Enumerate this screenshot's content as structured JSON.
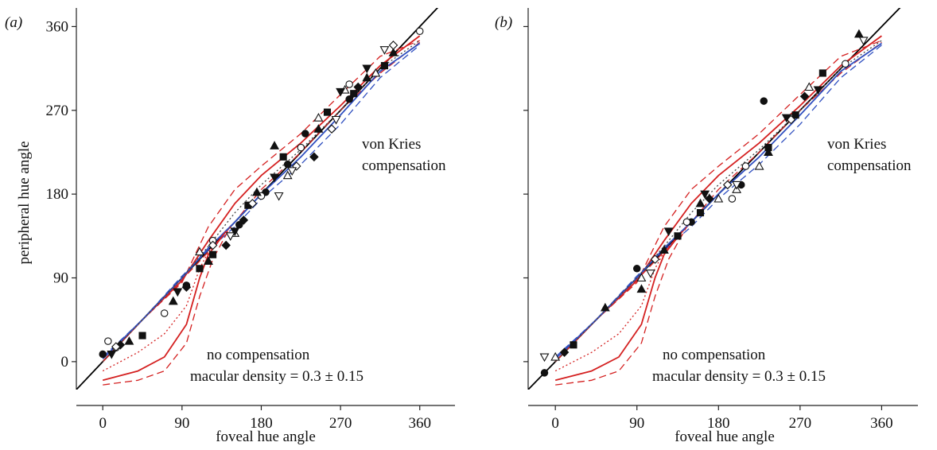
{
  "chart_data": [
    {
      "type": "scatter",
      "panel_label": "(a)",
      "xlabel": "foveal hue angle",
      "ylabel": "peripheral hue angle",
      "xlim": [
        -30,
        400
      ],
      "ylim": [
        -30,
        380
      ],
      "xticks": [
        0,
        90,
        180,
        270,
        360
      ],
      "yticks": [
        0,
        90,
        180,
        270,
        360
      ],
      "annotations": {
        "upper_1": "von Kries",
        "upper_2": "compensation",
        "lower_1": "no compensation",
        "lower_2": "macular density = 0.3 ± 0.15"
      },
      "lines": [
        {
          "name": "identity",
          "color": "#000000",
          "style": "solid",
          "x": [
            -30,
            400
          ],
          "y": [
            -30,
            400
          ]
        },
        {
          "name": "von Kries compensation",
          "color": "#d42020",
          "style": "solid",
          "x": [
            0,
            45,
            90,
            120,
            150,
            180,
            225,
            270,
            315,
            360
          ],
          "y": [
            0,
            45,
            87,
            130,
            170,
            200,
            235,
            275,
            318,
            350
          ]
        },
        {
          "name": "von Kries upper",
          "color": "#d42020",
          "style": "dashed",
          "x": [
            0,
            45,
            90,
            120,
            150,
            180,
            225,
            270,
            315,
            360
          ],
          "y": [
            0,
            45,
            85,
            145,
            185,
            210,
            245,
            287,
            328,
            345
          ]
        },
        {
          "name": "von Kries lower",
          "color": "#d42020",
          "style": "dashed",
          "x": [
            0,
            45,
            90,
            120,
            150,
            180,
            225,
            270,
            315,
            360
          ],
          "y": [
            0,
            45,
            88,
            118,
            150,
            185,
            225,
            270,
            310,
            343
          ]
        },
        {
          "name": "von Kries blue",
          "color": "#3050c0",
          "style": "solid",
          "x": [
            0,
            45,
            90,
            120,
            150,
            180,
            225,
            270,
            315,
            360
          ],
          "y": [
            3,
            45,
            90,
            122,
            150,
            180,
            220,
            265,
            312,
            342
          ]
        },
        {
          "name": "von Kries blue dashed",
          "color": "#3050c0",
          "style": "dashed",
          "x": [
            0,
            45,
            90,
            120,
            150,
            180,
            225,
            270,
            315,
            360
          ],
          "y": [
            5,
            45,
            92,
            120,
            145,
            175,
            212,
            255,
            305,
            340
          ]
        },
        {
          "name": "von Kries dotted",
          "color": "#444444",
          "style": "dotted",
          "x": [
            0,
            45,
            90,
            120,
            150,
            180,
            225,
            270,
            315,
            360
          ],
          "y": [
            0,
            45,
            90,
            124,
            160,
            190,
            228,
            270,
            315,
            345
          ]
        },
        {
          "name": "no compensation",
          "color": "#d42020",
          "style": "solid",
          "x": [
            0,
            40,
            70,
            95,
            110,
            120,
            140
          ],
          "y": [
            -20,
            -10,
            5,
            40,
            90,
            115,
            140
          ]
        },
        {
          "name": "no compensation upper",
          "color": "#d42020",
          "style": "dashed",
          "x": [
            0,
            40,
            70,
            95,
            110,
            125,
            145
          ],
          "y": [
            -25,
            -20,
            -10,
            20,
            70,
            110,
            145
          ]
        },
        {
          "name": "no compensation dotted",
          "color": "#d42020",
          "style": "dotted",
          "x": [
            0,
            40,
            70,
            95,
            110,
            120,
            140
          ],
          "y": [
            -10,
            10,
            30,
            60,
            100,
            118,
            140
          ]
        }
      ],
      "points": [
        {
          "marker": "filled-circle",
          "x": [
            0,
            95,
            155,
            185,
            210,
            230,
            280
          ],
          "y": [
            8,
            82,
            147,
            182,
            212,
            245,
            282
          ]
        },
        {
          "marker": "open-circle",
          "x": [
            6,
            15,
            70,
            125,
            180,
            225,
            280,
            360
          ],
          "y": [
            22,
            15,
            52,
            130,
            178,
            230,
            298,
            355
          ]
        },
        {
          "marker": "filled-square",
          "x": [
            45,
            110,
            125,
            165,
            205,
            255,
            285,
            320
          ],
          "y": [
            28,
            100,
            115,
            168,
            220,
            268,
            288,
            318
          ]
        },
        {
          "marker": "filled-triangle",
          "x": [
            30,
            80,
            120,
            175,
            195,
            245,
            300,
            330
          ],
          "y": [
            22,
            65,
            108,
            182,
            232,
            250,
            305,
            332
          ]
        },
        {
          "marker": "open-triangle",
          "x": [
            110,
            150,
            210,
            245,
            275,
            310
          ],
          "y": [
            118,
            138,
            200,
            262,
            292,
            310
          ]
        },
        {
          "marker": "filled-diamond",
          "x": [
            20,
            95,
            140,
            160,
            240,
            290
          ],
          "y": [
            18,
            80,
            125,
            152,
            220,
            295
          ]
        },
        {
          "marker": "open-diamond",
          "x": [
            15,
            125,
            170,
            220,
            260,
            330
          ],
          "y": [
            16,
            125,
            170,
            210,
            250,
            340
          ]
        },
        {
          "marker": "filled-down-triangle",
          "x": [
            10,
            85,
            150,
            195,
            270,
            300
          ],
          "y": [
            8,
            75,
            140,
            198,
            290,
            315
          ]
        },
        {
          "marker": "open-down-triangle",
          "x": [
            145,
            200,
            215,
            265,
            320
          ],
          "y": [
            135,
            178,
            205,
            260,
            335
          ]
        }
      ]
    },
    {
      "type": "scatter",
      "panel_label": "(b)",
      "xlabel": "foveal hue angle",
      "ylabel": "",
      "xlim": [
        -30,
        400
      ],
      "ylim": [
        -30,
        380
      ],
      "xticks": [
        0,
        90,
        180,
        270,
        360
      ],
      "yticks": [
        0,
        90,
        180,
        270,
        360
      ],
      "annotations": {
        "upper_1": "von Kries",
        "upper_2": "compensation",
        "lower_1": "no compensation",
        "lower_2": "macular density = 0.3 ± 0.15"
      },
      "lines": [
        {
          "name": "identity",
          "color": "#000000",
          "style": "solid",
          "x": [
            -30,
            400
          ],
          "y": [
            -30,
            400
          ]
        },
        {
          "name": "von Kries compensation",
          "color": "#d42020",
          "style": "solid",
          "x": [
            0,
            45,
            90,
            120,
            150,
            180,
            225,
            270,
            315,
            360
          ],
          "y": [
            0,
            45,
            87,
            130,
            170,
            200,
            235,
            275,
            318,
            350
          ]
        },
        {
          "name": "von Kries upper",
          "color": "#d42020",
          "style": "dashed",
          "x": [
            0,
            45,
            90,
            120,
            150,
            180,
            225,
            270,
            315,
            360
          ],
          "y": [
            0,
            45,
            85,
            145,
            185,
            210,
            245,
            287,
            328,
            345
          ]
        },
        {
          "name": "von Kries lower",
          "color": "#d42020",
          "style": "dashed",
          "x": [
            0,
            45,
            90,
            120,
            150,
            180,
            225,
            270,
            315,
            360
          ],
          "y": [
            0,
            45,
            88,
            118,
            150,
            185,
            225,
            270,
            310,
            343
          ]
        },
        {
          "name": "von Kries blue",
          "color": "#3050c0",
          "style": "solid",
          "x": [
            0,
            45,
            90,
            120,
            150,
            180,
            225,
            270,
            315,
            360
          ],
          "y": [
            3,
            45,
            90,
            122,
            150,
            180,
            220,
            265,
            312,
            342
          ]
        },
        {
          "name": "von Kries blue dashed",
          "color": "#3050c0",
          "style": "dashed",
          "x": [
            0,
            45,
            90,
            120,
            150,
            180,
            225,
            270,
            315,
            360
          ],
          "y": [
            5,
            45,
            92,
            120,
            145,
            175,
            212,
            255,
            305,
            340
          ]
        },
        {
          "name": "von Kries dotted",
          "color": "#444444",
          "style": "dotted",
          "x": [
            0,
            45,
            90,
            120,
            150,
            180,
            225,
            270,
            315,
            360
          ],
          "y": [
            0,
            45,
            90,
            124,
            160,
            190,
            228,
            270,
            315,
            345
          ]
        },
        {
          "name": "no compensation",
          "color": "#d42020",
          "style": "solid",
          "x": [
            0,
            40,
            70,
            95,
            110,
            120,
            140
          ],
          "y": [
            -20,
            -10,
            5,
            40,
            90,
            115,
            140
          ]
        },
        {
          "name": "no compensation upper",
          "color": "#d42020",
          "style": "dashed",
          "x": [
            0,
            40,
            70,
            95,
            110,
            125,
            145
          ],
          "y": [
            -25,
            -20,
            -10,
            20,
            70,
            110,
            145
          ]
        },
        {
          "name": "no compensation dotted",
          "color": "#d42020",
          "style": "dotted",
          "x": [
            0,
            40,
            70,
            95,
            110,
            120,
            140
          ],
          "y": [
            -10,
            10,
            30,
            60,
            100,
            118,
            140
          ]
        }
      ],
      "points": [
        {
          "marker": "filled-circle",
          "x": [
            -12,
            90,
            150,
            205,
            230
          ],
          "y": [
            -12,
            100,
            150,
            190,
            280
          ]
        },
        {
          "marker": "open-circle",
          "x": [
            145,
            195,
            210,
            260,
            320
          ],
          "y": [
            150,
            175,
            210,
            262,
            320
          ]
        },
        {
          "marker": "filled-square",
          "x": [
            20,
            135,
            160,
            235,
            265,
            295
          ],
          "y": [
            18,
            135,
            160,
            230,
            265,
            310
          ]
        },
        {
          "marker": "filled-triangle",
          "x": [
            55,
            95,
            120,
            160,
            235,
            335
          ],
          "y": [
            58,
            78,
            120,
            170,
            225,
            352
          ]
        },
        {
          "marker": "open-triangle",
          "x": [
            0,
            95,
            180,
            200,
            225,
            280
          ],
          "y": [
            5,
            90,
            175,
            185,
            210,
            295
          ]
        },
        {
          "marker": "filled-diamond",
          "x": [
            10,
            170,
            275
          ],
          "y": [
            10,
            175,
            285
          ]
        },
        {
          "marker": "open-diamond",
          "x": [
            110,
            190,
            260
          ],
          "y": [
            110,
            190,
            260
          ]
        },
        {
          "marker": "filled-down-triangle",
          "x": [
            125,
            165,
            255,
            290
          ],
          "y": [
            140,
            180,
            262,
            292
          ]
        },
        {
          "marker": "open-down-triangle",
          "x": [
            -12,
            105,
            200,
            340
          ],
          "y": [
            5,
            95,
            190,
            345
          ]
        }
      ]
    }
  ]
}
